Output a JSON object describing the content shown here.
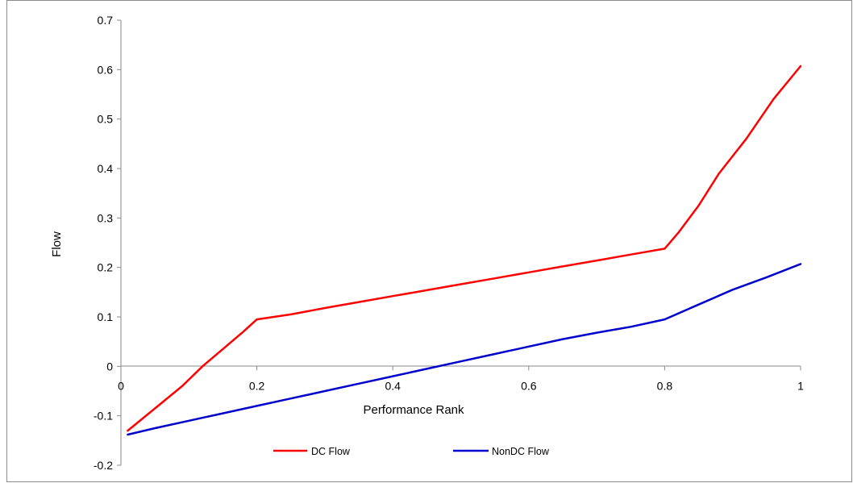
{
  "chart_data": {
    "type": "line",
    "title": "",
    "xlabel": "Performance Rank",
    "ylabel": "Flow",
    "xlim": [
      0,
      1
    ],
    "ylim": [
      -0.2,
      0.7
    ],
    "x_ticks": [
      0,
      0.2,
      0.4,
      0.6,
      0.8,
      1
    ],
    "x_tick_labels": [
      "0",
      "0.2",
      "0.4",
      "0.6",
      "0.8",
      "1"
    ],
    "y_ticks": [
      -0.2,
      -0.1,
      0,
      0.1,
      0.2,
      0.3,
      0.4,
      0.5,
      0.6,
      0.7
    ],
    "y_tick_labels": [
      "-0.2",
      "-0.1",
      "0",
      "0.1",
      "0.2",
      "0.3",
      "0.4",
      "0.5",
      "0.6",
      "0.7"
    ],
    "grid": false,
    "legend_position": "bottom",
    "series": [
      {
        "name": "DC Flow",
        "color": "#ff0000",
        "x": [
          0.01,
          0.05,
          0.09,
          0.12,
          0.15,
          0.18,
          0.2,
          0.25,
          0.3,
          0.35,
          0.4,
          0.45,
          0.5,
          0.55,
          0.6,
          0.65,
          0.7,
          0.75,
          0.8,
          0.82,
          0.85,
          0.88,
          0.92,
          0.96,
          1.0
        ],
        "y": [
          -0.13,
          -0.085,
          -0.04,
          0.0,
          0.035,
          0.07,
          0.095,
          0.105,
          0.118,
          0.13,
          0.142,
          0.154,
          0.166,
          0.178,
          0.19,
          0.202,
          0.214,
          0.226,
          0.238,
          0.27,
          0.325,
          0.39,
          0.46,
          0.54,
          0.607
        ]
      },
      {
        "name": "NonDC Flow",
        "color": "#0000cc",
        "x": [
          0.01,
          0.05,
          0.1,
          0.15,
          0.2,
          0.25,
          0.3,
          0.35,
          0.4,
          0.45,
          0.5,
          0.55,
          0.6,
          0.65,
          0.7,
          0.75,
          0.8,
          0.85,
          0.9,
          0.95,
          1.0
        ],
        "y": [
          -0.138,
          -0.125,
          -0.11,
          -0.095,
          -0.08,
          -0.065,
          -0.05,
          -0.035,
          -0.02,
          -0.005,
          0.01,
          0.025,
          0.04,
          0.055,
          0.068,
          0.08,
          0.095,
          0.125,
          0.155,
          0.18,
          0.207
        ]
      }
    ]
  }
}
